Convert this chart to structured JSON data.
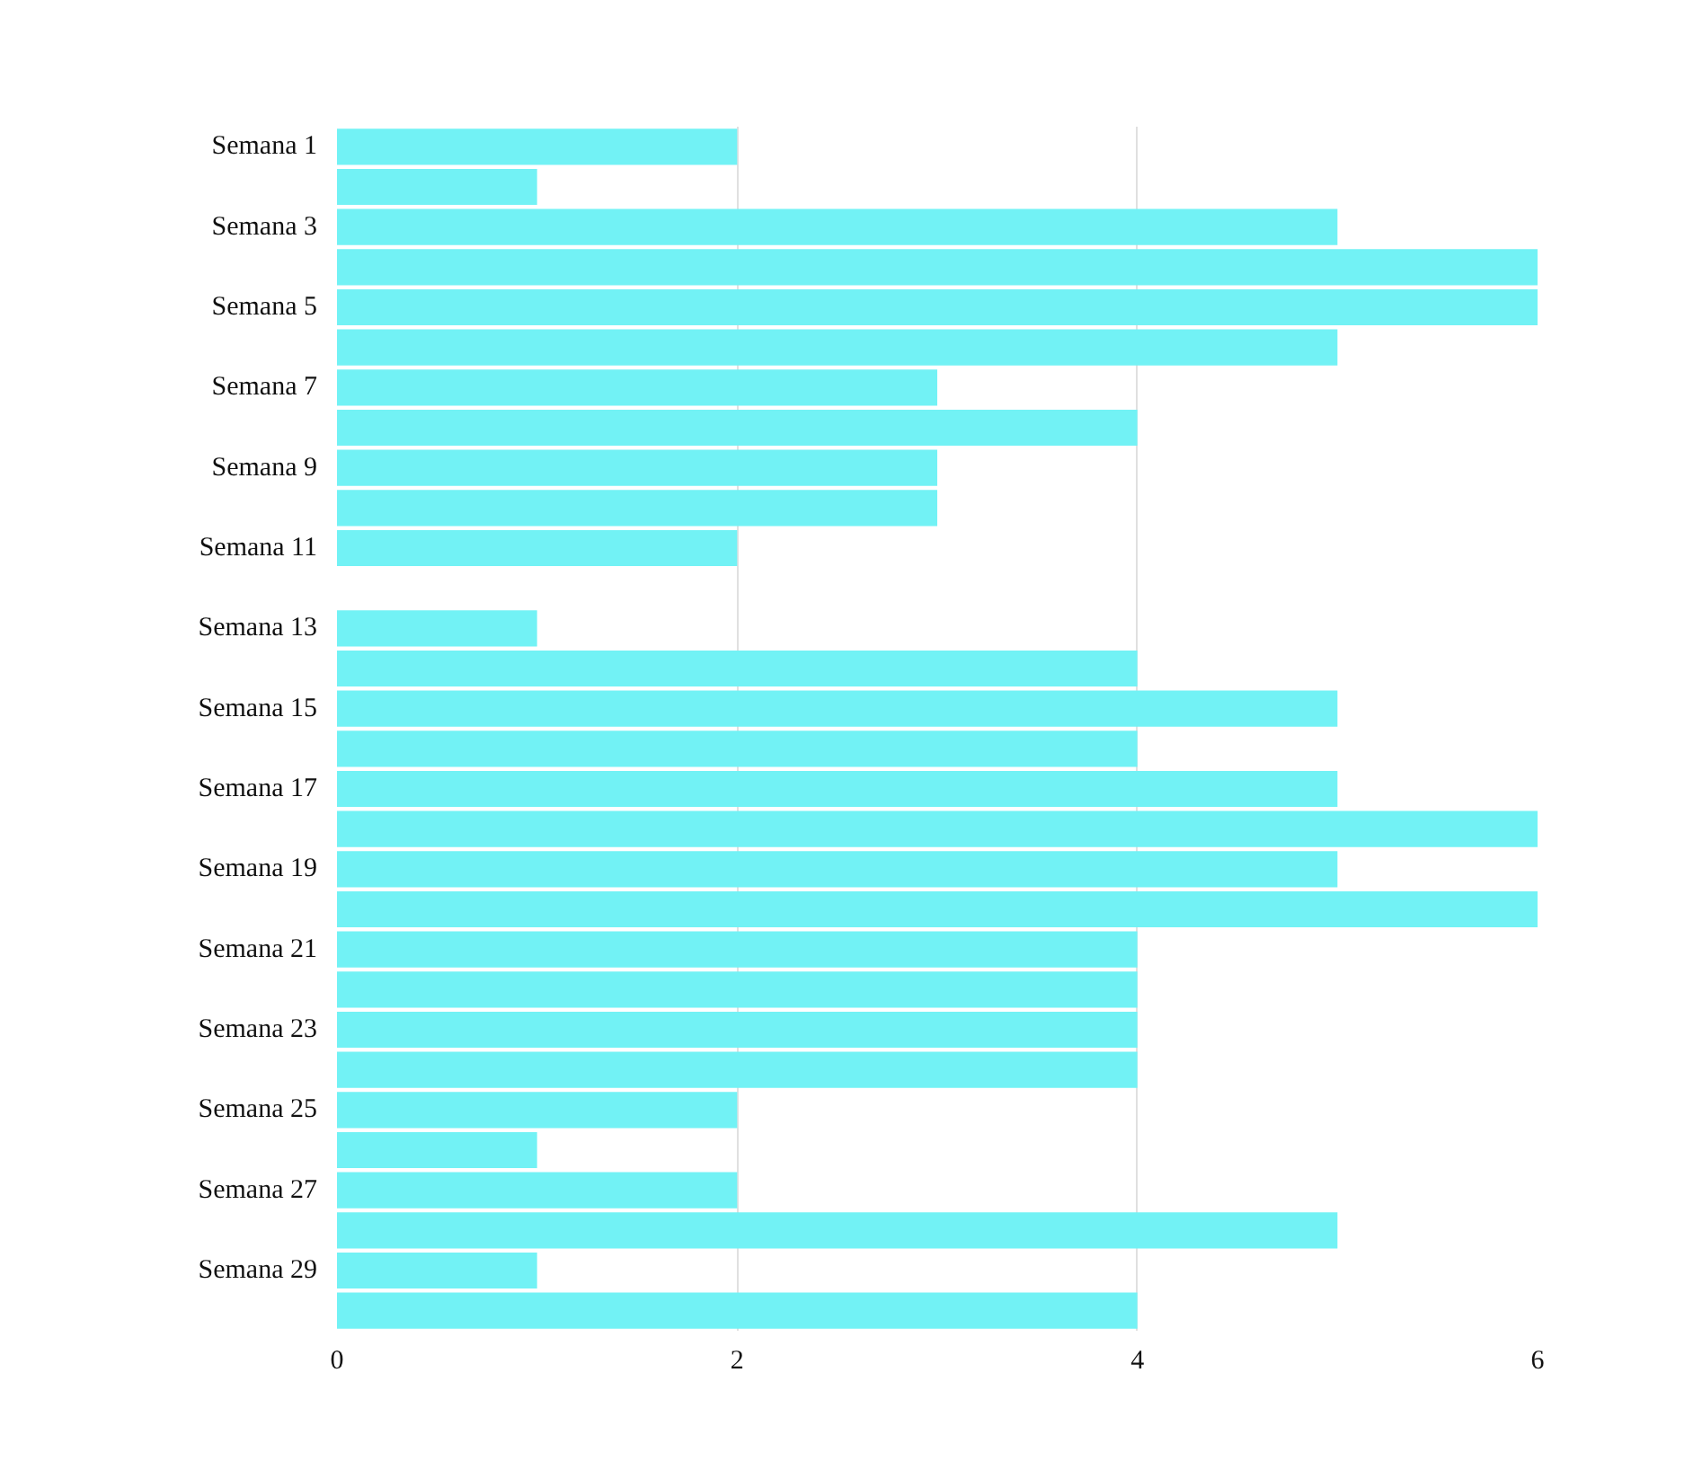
{
  "chart_data": {
    "type": "bar",
    "orientation": "horizontal",
    "categories": [
      "Semana 1",
      null,
      "Semana 3",
      null,
      "Semana 5",
      null,
      "Semana 7",
      null,
      "Semana 9",
      null,
      "Semana 11",
      null,
      "Semana 13",
      null,
      "Semana 15",
      null,
      "Semana 17",
      null,
      "Semana 19",
      null,
      "Semana 21",
      null,
      "Semana 23",
      null,
      "Semana 25",
      null,
      "Semana 27",
      null,
      "Semana 29",
      null
    ],
    "values": [
      2,
      1,
      5,
      6,
      6,
      5,
      3,
      4,
      3,
      3,
      2,
      0,
      1,
      4,
      5,
      4,
      5,
      6,
      5,
      6,
      4,
      4,
      4,
      4,
      2,
      1,
      2,
      5,
      1,
      4
    ],
    "color": "#72f2f5",
    "xlim": [
      0,
      6
    ],
    "xticks": [
      0,
      2,
      4,
      6
    ],
    "grid": "x"
  }
}
